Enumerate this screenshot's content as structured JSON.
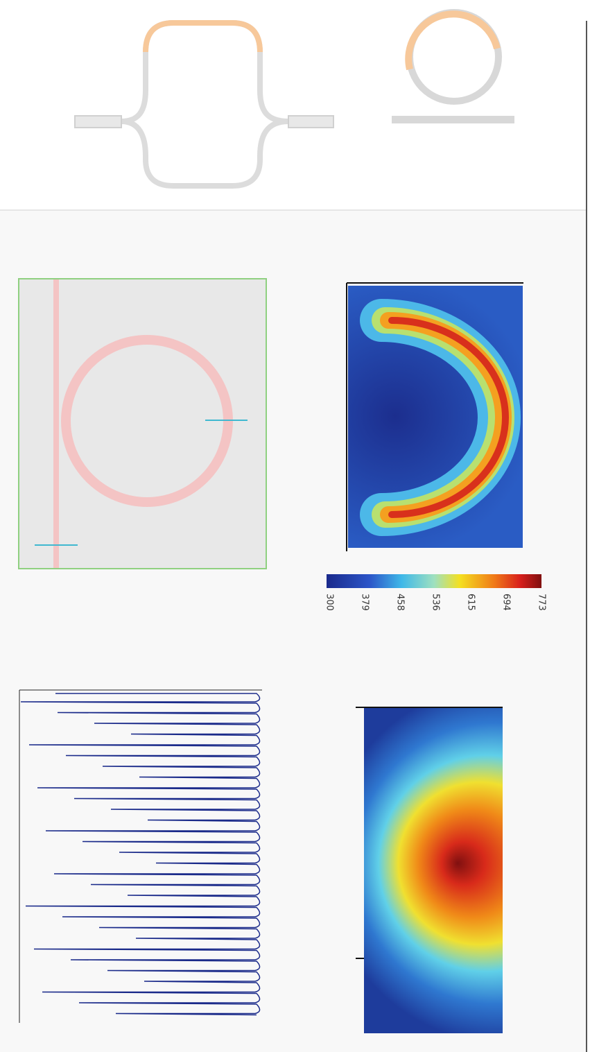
{
  "colorbar": {
    "ticks": [
      "300",
      "379",
      "458",
      "536",
      "615",
      "694",
      "773"
    ]
  }
}
